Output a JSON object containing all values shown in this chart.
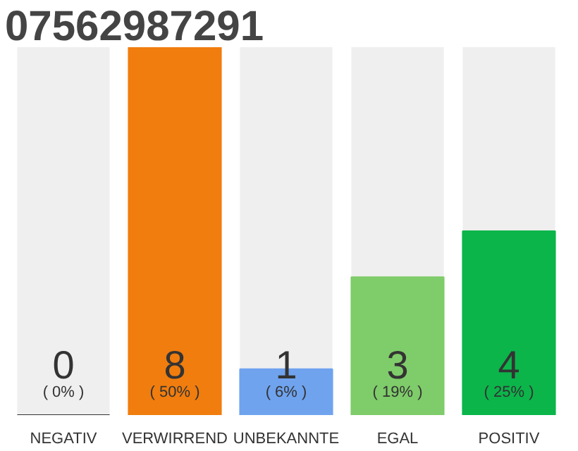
{
  "chart_data": {
    "type": "bar",
    "title": "07562987291",
    "categories": [
      "NEGATIV",
      "VERWIRREND",
      "UNBEKANNTE",
      "EGAL",
      "POSITIV"
    ],
    "values": [
      0,
      8,
      1,
      3,
      4
    ],
    "colors": [
      "#333333",
      "#f07d0e",
      "#6fa3ee",
      "#7fcc6a",
      "#0bb54a"
    ],
    "ylim": [
      0,
      8
    ],
    "tick_labels": "x",
    "data_labels": true,
    "annotations": [
      "( 0% )",
      "( 50% )",
      "( 6% )",
      "( 19% )",
      "( 25% )"
    ]
  }
}
